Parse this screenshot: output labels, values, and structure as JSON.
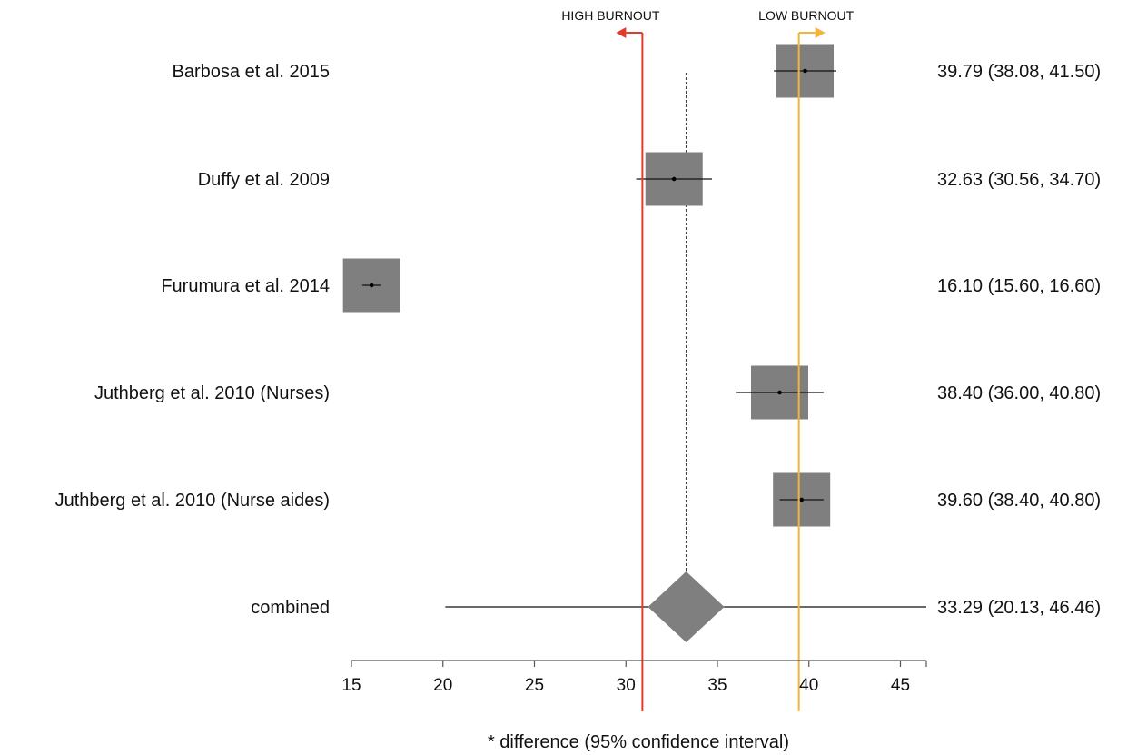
{
  "chart_data": {
    "type": "forest",
    "xlabel": "* difference (95% confidence interval)",
    "xlim": [
      15,
      46.3
    ],
    "xticks": [
      15,
      20,
      25,
      30,
      35,
      40,
      45
    ],
    "studies": [
      {
        "label": "Barbosa et al. 2015",
        "estimate": 39.79,
        "lower": 38.08,
        "upper": 41.5,
        "ci_text": "39.79 (38.08, 41.50)"
      },
      {
        "label": "Duffy et al. 2009",
        "estimate": 32.63,
        "lower": 30.56,
        "upper": 34.7,
        "ci_text": "32.63 (30.56, 34.70)"
      },
      {
        "label": "Furumura et al. 2014",
        "estimate": 16.1,
        "lower": 15.6,
        "upper": 16.6,
        "ci_text": "16.10 (15.60, 16.60)"
      },
      {
        "label": "Juthberg et al. 2010 (Nurses)",
        "estimate": 38.4,
        "lower": 36.0,
        "upper": 40.8,
        "ci_text": "38.40 (36.00, 40.80)"
      },
      {
        "label": "Juthberg et al. 2010 (Nurse aides)",
        "estimate": 39.6,
        "lower": 38.4,
        "upper": 40.8,
        "ci_text": "39.60 (38.40, 40.80)"
      }
    ],
    "combined": {
      "label": "combined",
      "estimate": 33.29,
      "lower": 20.13,
      "upper": 46.46,
      "ci_text": "33.29 (20.13, 46.46)"
    },
    "reference_lines": [
      {
        "label": "HIGH BURNOUT",
        "value": 30.9,
        "color": "#e23b2a",
        "direction": "left"
      },
      {
        "label": "LOW BURNOUT",
        "value": 39.45,
        "color": "#f4b33a",
        "direction": "right"
      }
    ],
    "box_color": "#7f7f7f",
    "line_color": "#111111"
  }
}
